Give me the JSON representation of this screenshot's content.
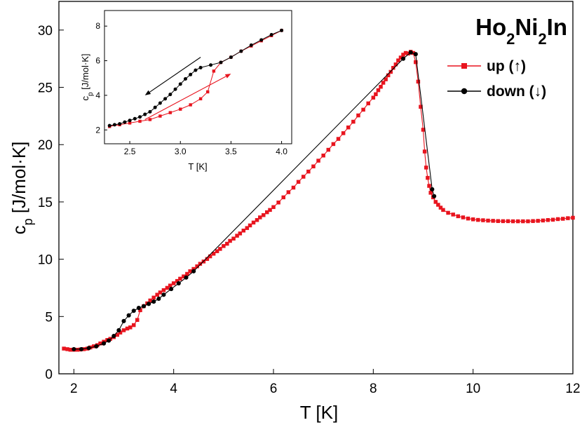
{
  "chart_data": [
    {
      "type": "line",
      "title": "Ho2Ni2In",
      "title_parts": {
        "el1": "Ho",
        "n1": "2",
        "el2": "Ni",
        "n2": "2",
        "el3": "In"
      },
      "xlabel": "T [K]",
      "ylabel": "c",
      "ylabel_sub": "p",
      "ylabel_units": " [J/mol·K]",
      "xlim": [
        1.7,
        12
      ],
      "ylim": [
        0,
        32.5
      ],
      "xticks": [
        2,
        4,
        6,
        8,
        10,
        12
      ],
      "yticks": [
        0,
        5,
        10,
        15,
        20,
        25,
        30
      ],
      "legend_position": "top-right",
      "series": [
        {
          "name": "up (↑)",
          "color": "#e8141e",
          "marker": "square",
          "x": [
            1.8,
            1.87,
            1.93,
            2.0,
            2.07,
            2.13,
            2.2,
            2.27,
            2.33,
            2.4,
            2.47,
            2.53,
            2.6,
            2.67,
            2.73,
            2.8,
            2.87,
            2.93,
            3.0,
            3.07,
            3.13,
            3.2,
            3.27,
            3.33,
            3.4,
            3.47,
            3.53,
            3.6,
            3.67,
            3.73,
            3.8,
            3.87,
            3.93,
            4.0,
            4.07,
            4.13,
            4.2,
            4.27,
            4.33,
            4.4,
            4.47,
            4.53,
            4.6,
            4.67,
            4.73,
            4.8,
            4.87,
            4.93,
            5.0,
            5.07,
            5.13,
            5.2,
            5.27,
            5.33,
            5.4,
            5.47,
            5.53,
            5.6,
            5.67,
            5.73,
            5.8,
            5.87,
            5.93,
            6.0,
            6.1,
            6.2,
            6.3,
            6.4,
            6.5,
            6.6,
            6.7,
            6.8,
            6.9,
            7.0,
            7.1,
            7.2,
            7.3,
            7.4,
            7.5,
            7.6,
            7.7,
            7.8,
            7.9,
            8.0,
            8.05,
            8.1,
            8.15,
            8.2,
            8.25,
            8.3,
            8.35,
            8.4,
            8.45,
            8.5,
            8.55,
            8.6,
            8.65,
            8.7,
            8.75,
            8.8,
            8.85,
            8.9,
            8.95,
            9.0,
            9.03,
            9.06,
            9.09,
            9.12,
            9.15,
            9.2,
            9.25,
            9.3,
            9.35,
            9.4,
            9.5,
            9.6,
            9.7,
            9.8,
            9.9,
            10.0,
            10.1,
            10.2,
            10.3,
            10.4,
            10.5,
            10.6,
            10.7,
            10.8,
            10.9,
            11.0,
            11.1,
            11.2,
            11.3,
            11.4,
            11.5,
            11.6,
            11.7,
            11.8,
            11.9,
            12.0
          ],
          "y": [
            2.2,
            2.15,
            2.1,
            2.1,
            2.1,
            2.12,
            2.15,
            2.2,
            2.3,
            2.4,
            2.5,
            2.65,
            2.8,
            2.95,
            3.05,
            3.2,
            3.4,
            3.6,
            3.8,
            3.95,
            4.05,
            4.25,
            4.7,
            5.55,
            5.9,
            6.15,
            6.4,
            6.65,
            6.9,
            7.1,
            7.3,
            7.5,
            7.7,
            7.9,
            8.1,
            8.3,
            8.5,
            8.72,
            8.95,
            9.15,
            9.38,
            9.6,
            9.8,
            10.02,
            10.25,
            10.48,
            10.7,
            10.9,
            11.15,
            11.35,
            11.6,
            11.8,
            12.05,
            12.25,
            12.5,
            12.72,
            12.95,
            13.2,
            13.42,
            13.65,
            13.85,
            14.1,
            14.3,
            14.55,
            14.95,
            15.4,
            15.85,
            16.25,
            16.75,
            17.2,
            17.65,
            18.1,
            18.6,
            19.05,
            19.55,
            20.05,
            20.5,
            21.0,
            21.5,
            22.0,
            22.55,
            23.05,
            23.6,
            24.1,
            24.4,
            24.75,
            25.05,
            25.4,
            25.7,
            26.05,
            26.35,
            26.7,
            27.0,
            27.35,
            27.6,
            27.85,
            28.0,
            27.95,
            28.1,
            28.0,
            27.2,
            25.5,
            23.3,
            21.3,
            19.4,
            18.0,
            17.1,
            16.4,
            15.8,
            15.4,
            15.0,
            14.75,
            14.5,
            14.3,
            14.05,
            13.9,
            13.75,
            13.65,
            13.55,
            13.48,
            13.43,
            13.4,
            13.37,
            13.35,
            13.33,
            13.32,
            13.32,
            13.31,
            13.31,
            13.31,
            13.31,
            13.33,
            13.35,
            13.38,
            13.42,
            13.45,
            13.5,
            13.53,
            13.58,
            13.62
          ]
        },
        {
          "name": "down (↓)",
          "color": "#000000",
          "marker": "circle",
          "x": [
            2.0,
            2.15,
            2.3,
            2.45,
            2.6,
            2.7,
            2.8,
            2.9,
            3.0,
            3.1,
            3.2,
            3.3,
            3.4,
            3.5,
            3.6,
            3.7,
            3.8,
            3.95,
            4.1,
            4.25,
            4.4,
            8.6,
            8.75,
            8.85,
            9.18,
            9.22
          ],
          "y": [
            2.15,
            2.15,
            2.25,
            2.4,
            2.65,
            2.9,
            3.3,
            3.8,
            4.6,
            5.1,
            5.5,
            5.75,
            5.9,
            6.1,
            6.3,
            6.55,
            6.9,
            7.4,
            7.9,
            8.4,
            8.95,
            27.5,
            28.05,
            27.9,
            16.1,
            15.5
          ]
        }
      ]
    },
    {
      "type": "line",
      "title": "",
      "xlabel": "T [K]",
      "ylabel": "c",
      "ylabel_sub": "p",
      "ylabel_units": " [J/mol·K]",
      "xlim": [
        2.25,
        4.1
      ],
      "ylim": [
        1.2,
        8.9
      ],
      "xticks": [
        2.5,
        3.0,
        3.5,
        4.0
      ],
      "xtick_labels": [
        "2.5",
        "3.0",
        "3.5",
        "4.0"
      ],
      "yticks": [
        2,
        4,
        6,
        8
      ],
      "annotations": [
        {
          "kind": "arrow",
          "direction": "down-left",
          "color": "#000000",
          "from": [
            3.2,
            6.2
          ],
          "to": [
            2.65,
            4.0
          ]
        },
        {
          "kind": "arrow",
          "direction": "up-right",
          "color": "#e8141e",
          "from": [
            2.65,
            2.6
          ],
          "to": [
            3.5,
            5.25
          ]
        }
      ],
      "series": [
        {
          "name": "up (↑)",
          "color": "#e8141e",
          "marker": "square",
          "x": [
            2.3,
            2.4,
            2.5,
            2.6,
            2.7,
            2.8,
            2.9,
            3.0,
            3.1,
            3.2,
            3.27,
            3.33,
            3.4,
            3.5,
            3.6,
            3.7,
            3.8,
            3.9,
            4.0
          ],
          "y": [
            2.2,
            2.3,
            2.4,
            2.5,
            2.6,
            2.8,
            3.0,
            3.2,
            3.45,
            3.8,
            4.2,
            5.4,
            5.9,
            6.2,
            6.55,
            6.85,
            7.15,
            7.45,
            7.75
          ]
        },
        {
          "name": "down (↓)",
          "color": "#000000",
          "marker": "circle",
          "x": [
            2.3,
            2.35,
            2.4,
            2.45,
            2.5,
            2.55,
            2.6,
            2.65,
            2.7,
            2.75,
            2.8,
            2.85,
            2.9,
            2.95,
            3.0,
            3.05,
            3.1,
            3.15,
            3.2,
            3.3,
            3.4,
            3.5,
            3.6,
            3.7,
            3.8,
            3.9,
            4.0
          ],
          "y": [
            2.25,
            2.3,
            2.35,
            2.45,
            2.55,
            2.65,
            2.75,
            2.9,
            3.05,
            3.3,
            3.55,
            3.8,
            4.05,
            4.35,
            4.65,
            4.95,
            5.2,
            5.45,
            5.6,
            5.75,
            5.9,
            6.2,
            6.55,
            6.9,
            7.2,
            7.5,
            7.75
          ]
        }
      ]
    }
  ]
}
